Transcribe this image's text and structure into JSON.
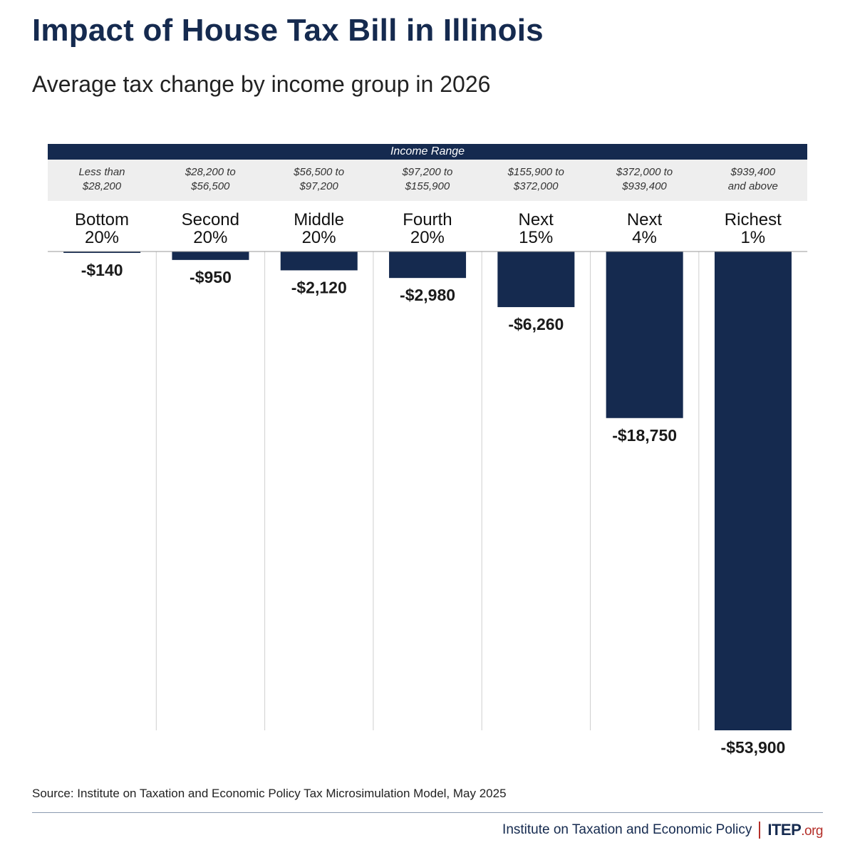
{
  "header": {
    "title": "Impact of House Tax Bill in Illinois",
    "subtitle": "Average tax change by income group in 2026",
    "range_header": "Income Range"
  },
  "chart_data": {
    "type": "bar",
    "title": "Impact of House Tax Bill in Illinois",
    "subtitle": "Average tax change by income group in 2026",
    "categories": [
      "Bottom\n20%",
      "Second\n20%",
      "Middle\n20%",
      "Fourth\n20%",
      "Next\n15%",
      "Next\n4%",
      "Richest\n1%"
    ],
    "income_ranges": [
      "Less than\n$28,200",
      "$28,200 to\n$56,500",
      "$56,500 to\n$97,200",
      "$97,200 to\n$155,900",
      "$155,900 to\n$372,000",
      "$372,000 to\n$939,400",
      "$939,400\nand above"
    ],
    "values": [
      -140,
      -950,
      -2120,
      -2980,
      -6260,
      -18750,
      -53900
    ],
    "value_labels": [
      "-$140",
      "-$950",
      "-$2,120",
      "-$2,980",
      "-$6,260",
      "-$18,750",
      "-$53,900"
    ],
    "ylim": [
      -53900,
      0
    ],
    "grid": false,
    "bar_color": "#152a4f"
  },
  "footer": {
    "source": "Source: Institute on Taxation and Economic Policy Tax Microsimulation Model, May 2025",
    "org_name": "Institute on Taxation and Economic Policy",
    "logo_main": "ITEP",
    "logo_suffix": ".org"
  },
  "colors": {
    "navy": "#152a4f",
    "accent_red": "#b5302a",
    "range_band": "#eeeeee"
  }
}
